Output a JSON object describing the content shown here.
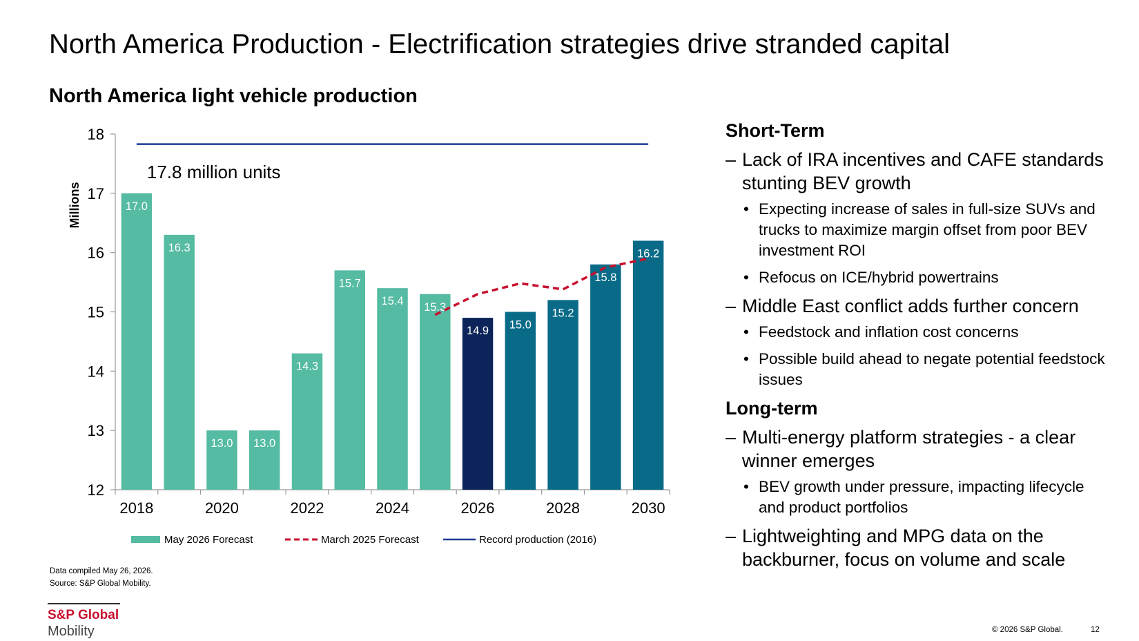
{
  "slide": {
    "title": "North America Production - Electrification strategies drive stranded capital",
    "subtitle": "North America light vehicle production",
    "notes": [
      "Data compiled May 26, 2026.",
      "Source: S&P Global Mobility."
    ],
    "brand_name": "S&P Global",
    "brand_sub": "Mobility",
    "copyright": "© 2026 S&P Global.",
    "page_number": "12"
  },
  "chart_data": {
    "type": "bar",
    "ylabel": "Millions",
    "ylim": [
      12,
      18
    ],
    "yticks": [
      12,
      13,
      14,
      15,
      16,
      17,
      18
    ],
    "x": [
      2018,
      2019,
      2020,
      2021,
      2022,
      2023,
      2024,
      2025,
      2026,
      2027,
      2028,
      2029,
      2030
    ],
    "x_tick_labels": [
      "2018",
      "2020",
      "2022",
      "2024",
      "2026",
      "2028",
      "2030"
    ],
    "x_tick_positions": [
      2018,
      2020,
      2022,
      2024,
      2026,
      2028,
      2030
    ],
    "series": [
      {
        "name": "May 2026 Forecast",
        "type": "bar",
        "values": [
          17.0,
          16.3,
          13.0,
          13.0,
          14.3,
          15.7,
          15.4,
          15.3,
          14.9,
          15.0,
          15.2,
          15.8,
          16.2
        ],
        "labels": [
          "17.0",
          "16.3",
          "13.0",
          "13.0",
          "14.3",
          "15.7",
          "15.4",
          "15.3",
          "14.9",
          "15.0",
          "15.2",
          "15.8",
          "16.2"
        ],
        "colors": [
          "#55bba2",
          "#55bba2",
          "#55bba2",
          "#55bba2",
          "#55bba2",
          "#55bba2",
          "#55bba2",
          "#55bba2",
          "#0c2459",
          "#0a6b88",
          "#0a6b88",
          "#0a6b88",
          "#0a6b88"
        ]
      },
      {
        "name": "March 2025 Forecast",
        "type": "line",
        "style": "dashed",
        "color": "#c8102e",
        "x": [
          2025,
          2026,
          2027,
          2028,
          2029,
          2030
        ],
        "values": [
          14.95,
          15.3,
          15.48,
          15.38,
          15.75,
          15.9
        ]
      },
      {
        "name": "Record production (2016)",
        "type": "hline",
        "color": "#1f3a93",
        "value": 17.83
      }
    ],
    "annotations": [
      {
        "text": "17.8 million units"
      }
    ],
    "legend_position": "bottom",
    "grid": false
  },
  "panel": {
    "sections": [
      {
        "heading": "Short-Term",
        "points": [
          {
            "text": "Lack of IRA incentives and CAFE standards stunting BEV growth",
            "subs": [
              "Expecting increase of sales in full-size SUVs and trucks to maximize margin offset from poor BEV investment ROI",
              "Refocus on ICE/hybrid powertrains"
            ]
          },
          {
            "text": "Middle East conflict adds further concern",
            "subs": [
              "Feedstock and inflation cost concerns",
              "Possible build ahead to negate potential feedstock issues"
            ]
          }
        ]
      },
      {
        "heading": "Long-term",
        "points": [
          {
            "text": "Multi-energy platform strategies - a clear winner emerges",
            "subs": [
              "BEV growth under pressure, impacting lifecycle and product portfolios"
            ]
          },
          {
            "text": "Lightweighting and MPG data on the backburner, focus on volume and scale",
            "subs": []
          }
        ]
      }
    ]
  }
}
